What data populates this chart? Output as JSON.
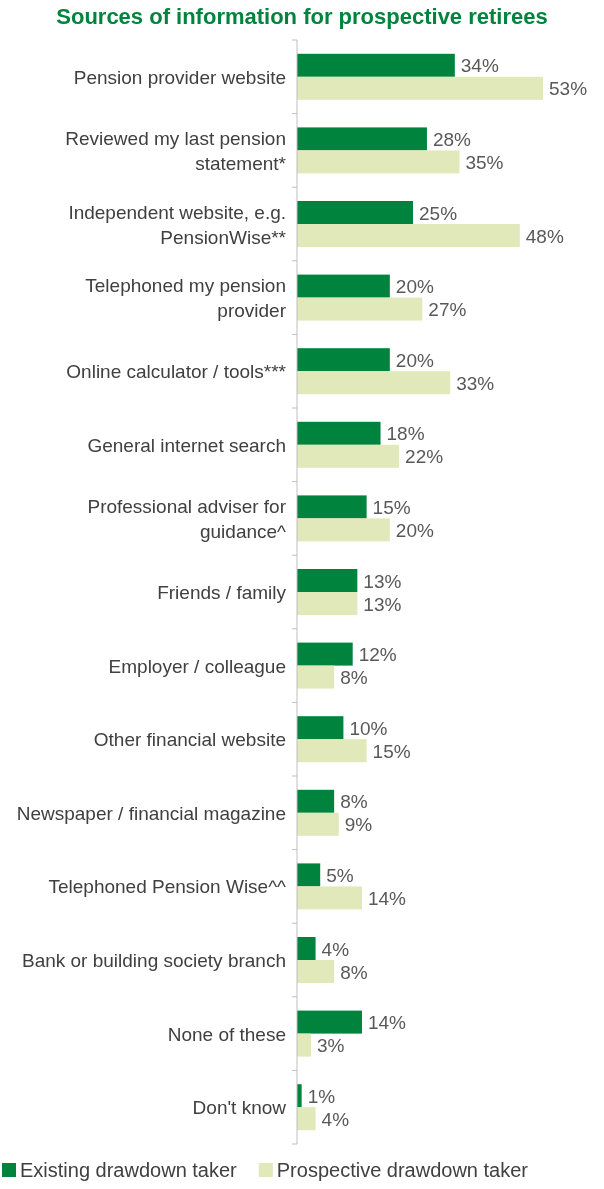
{
  "chart_data": {
    "type": "bar",
    "orientation": "horizontal",
    "title": "Sources of information for prospective retirees",
    "categories": [
      "Pension provider website",
      "Reviewed my last pension statement*",
      "Independent website, e.g. PensionWise**",
      "Telephoned my pension provider",
      "Online calculator / tools***",
      "General internet search",
      "Professional adviser for guidance^",
      "Friends / family",
      "Employer / colleague",
      "Other financial website",
      "Newspaper / financial magazine",
      "Telephoned Pension Wise^^",
      "Bank or building society branch",
      "None of these",
      "Don't know"
    ],
    "series": [
      {
        "name": "Existing drawdown taker",
        "color": "#00843d",
        "values": [
          34,
          28,
          25,
          20,
          20,
          18,
          15,
          13,
          12,
          10,
          8,
          5,
          4,
          14,
          1
        ],
        "value_labels": [
          "34%",
          "28%",
          "25%",
          "20%",
          "20%",
          "18%",
          "15%",
          "13%",
          "12%",
          "10%",
          "8%",
          "5%",
          "4%",
          "14%",
          "1%"
        ]
      },
      {
        "name": "Prospective drawdown taker",
        "color": "#e1e8b9",
        "values": [
          53,
          35,
          48,
          27,
          33,
          22,
          20,
          13,
          8,
          15,
          9,
          14,
          8,
          3,
          4
        ],
        "value_labels": [
          "53%",
          "35%",
          "48%",
          "27%",
          "33%",
          "22%",
          "20%",
          "13%",
          "8%",
          "15%",
          "9%",
          "14%",
          "8%",
          "3%",
          "4%"
        ]
      }
    ],
    "legend": "bottom"
  }
}
